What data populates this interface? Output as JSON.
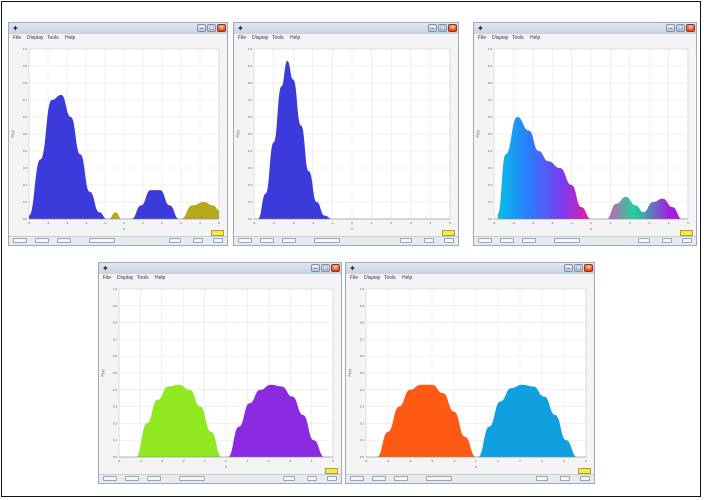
{
  "chart_data": [
    {
      "type": "area",
      "title": "",
      "xlabel": "x",
      "ylabel": "P(x)",
      "xlim": [
        -5,
        5
      ],
      "ylim": [
        0,
        1
      ],
      "series": [
        {
          "color": "#3b3bdc",
          "x": [
            -5,
            -4.4,
            -3.8,
            -3.3,
            -2.8,
            -2.3,
            -1.8,
            -1.3,
            -0.9
          ],
          "values": [
            0.02,
            0.35,
            0.7,
            0.73,
            0.6,
            0.38,
            0.16,
            0.04,
            0
          ]
        },
        {
          "color": "#b5a81a",
          "x": [
            -0.8,
            -0.45,
            -0.1
          ],
          "values": [
            0,
            0.04,
            0
          ]
        },
        {
          "color": "#3b3bdc",
          "x": [
            0.4,
            0.9,
            1.4,
            1.9,
            2.4,
            2.9
          ],
          "values": [
            0,
            0.08,
            0.17,
            0.17,
            0.08,
            0
          ]
        },
        {
          "color": "#b5a81a",
          "x": [
            3.0,
            3.6,
            4.2,
            4.7,
            5.0
          ],
          "values": [
            0,
            0.08,
            0.1,
            0.08,
            0.05
          ]
        }
      ]
    },
    {
      "type": "area",
      "title": "",
      "xlabel": "x",
      "ylabel": "P(x)",
      "xlim": [
        -5,
        5
      ],
      "ylim": [
        0,
        1
      ],
      "series": [
        {
          "color": "#3b3bdc",
          "x": [
            -4.8,
            -4.4,
            -4.0,
            -3.6,
            -3.3,
            -3.0,
            -2.6,
            -2.2,
            -1.8,
            -1.4,
            -1.0
          ],
          "values": [
            0,
            0.15,
            0.45,
            0.78,
            0.93,
            0.82,
            0.55,
            0.28,
            0.1,
            0.02,
            0
          ]
        }
      ]
    },
    {
      "type": "area",
      "title": "",
      "xlabel": "x",
      "ylabel": "P(x)",
      "xlim": [
        -5,
        5
      ],
      "ylim": [
        0,
        1
      ],
      "colormap": [
        "#00c8e0",
        "#2a7bff",
        "#7a3cf0",
        "#e01aa8",
        "#ff3cc0",
        "#1fd39a",
        "#a020e0"
      ],
      "series": [
        {
          "color": "#2a7bff",
          "x": [
            -4.8,
            -4.4,
            -3.8,
            -3.2,
            -2.7,
            -2.2,
            -1.6,
            -1.0,
            -0.5,
            0
          ],
          "values": [
            0.03,
            0.38,
            0.6,
            0.52,
            0.4,
            0.34,
            0.3,
            0.2,
            0.07,
            0
          ]
        },
        {
          "color": "#1fd39a",
          "x": [
            0.8,
            1.3,
            1.8,
            2.3,
            2.7
          ],
          "values": [
            0,
            0.09,
            0.13,
            0.08,
            0.04
          ]
        },
        {
          "color": "#a020e0",
          "x": [
            2.7,
            3.2,
            3.7,
            4.2,
            4.7
          ],
          "values": [
            0.04,
            0.1,
            0.12,
            0.07,
            0
          ]
        }
      ]
    },
    {
      "type": "area",
      "title": "",
      "xlabel": "x",
      "ylabel": "P(x)",
      "xlim": [
        -5,
        5
      ],
      "ylim": [
        0,
        1
      ],
      "series": [
        {
          "color": "#8fe820",
          "x": [
            -4.2,
            -3.7,
            -3.2,
            -2.7,
            -2.2,
            -1.7,
            -1.2,
            -0.7,
            -0.2
          ],
          "values": [
            0,
            0.2,
            0.34,
            0.42,
            0.43,
            0.4,
            0.3,
            0.15,
            0
          ]
        },
        {
          "color": "#8a2be2",
          "x": [
            0.1,
            0.6,
            1.1,
            1.6,
            2.1,
            2.6,
            3.1,
            3.6,
            4.1,
            4.6
          ],
          "values": [
            0,
            0.18,
            0.32,
            0.4,
            0.43,
            0.42,
            0.36,
            0.25,
            0.1,
            0
          ]
        }
      ]
    },
    {
      "type": "area",
      "title": "",
      "xlabel": "x",
      "ylabel": "P(x)",
      "xlim": [
        -5,
        5
      ],
      "ylim": [
        0,
        1
      ],
      "series": [
        {
          "color": "#ff5a14",
          "x": [
            -4.5,
            -4.0,
            -3.5,
            -3.0,
            -2.5,
            -2.0,
            -1.5,
            -1.0,
            -0.5,
            0
          ],
          "values": [
            0,
            0.15,
            0.3,
            0.4,
            0.43,
            0.43,
            0.38,
            0.27,
            0.12,
            0
          ]
        },
        {
          "color": "#0fa0e0",
          "x": [
            0.1,
            0.6,
            1.1,
            1.6,
            2.1,
            2.6,
            3.1,
            3.6,
            4.1,
            4.6
          ],
          "values": [
            0,
            0.18,
            0.33,
            0.41,
            0.43,
            0.42,
            0.36,
            0.25,
            0.1,
            0
          ]
        }
      ]
    }
  ],
  "windows": [
    {
      "menu": [
        "File",
        "Display",
        "Tools",
        "Help"
      ]
    },
    {
      "menu": [
        "File",
        "Display",
        "Tools",
        "Help"
      ]
    },
    {
      "menu": [
        "File",
        "Display",
        "Tools",
        "Help"
      ]
    },
    {
      "menu": [
        "File",
        "Display",
        "Tools",
        "Help"
      ]
    },
    {
      "menu": [
        "File",
        "Display",
        "Tools",
        "Help"
      ]
    }
  ],
  "axes": {
    "x_ticks": [
      "-5",
      "-4",
      "-3",
      "-2",
      "-1",
      "0",
      "1",
      "2",
      "3",
      "4",
      "5"
    ],
    "y_ticks": [
      "0.0",
      "0.1",
      "0.2",
      "0.3",
      "0.4",
      "0.5",
      "0.6",
      "0.7",
      "0.8",
      "0.9",
      "1.0"
    ]
  },
  "icons": {
    "app": "app-icon",
    "minimize": "minimize-icon",
    "maximize": "maximize-icon",
    "close": "close-icon"
  }
}
